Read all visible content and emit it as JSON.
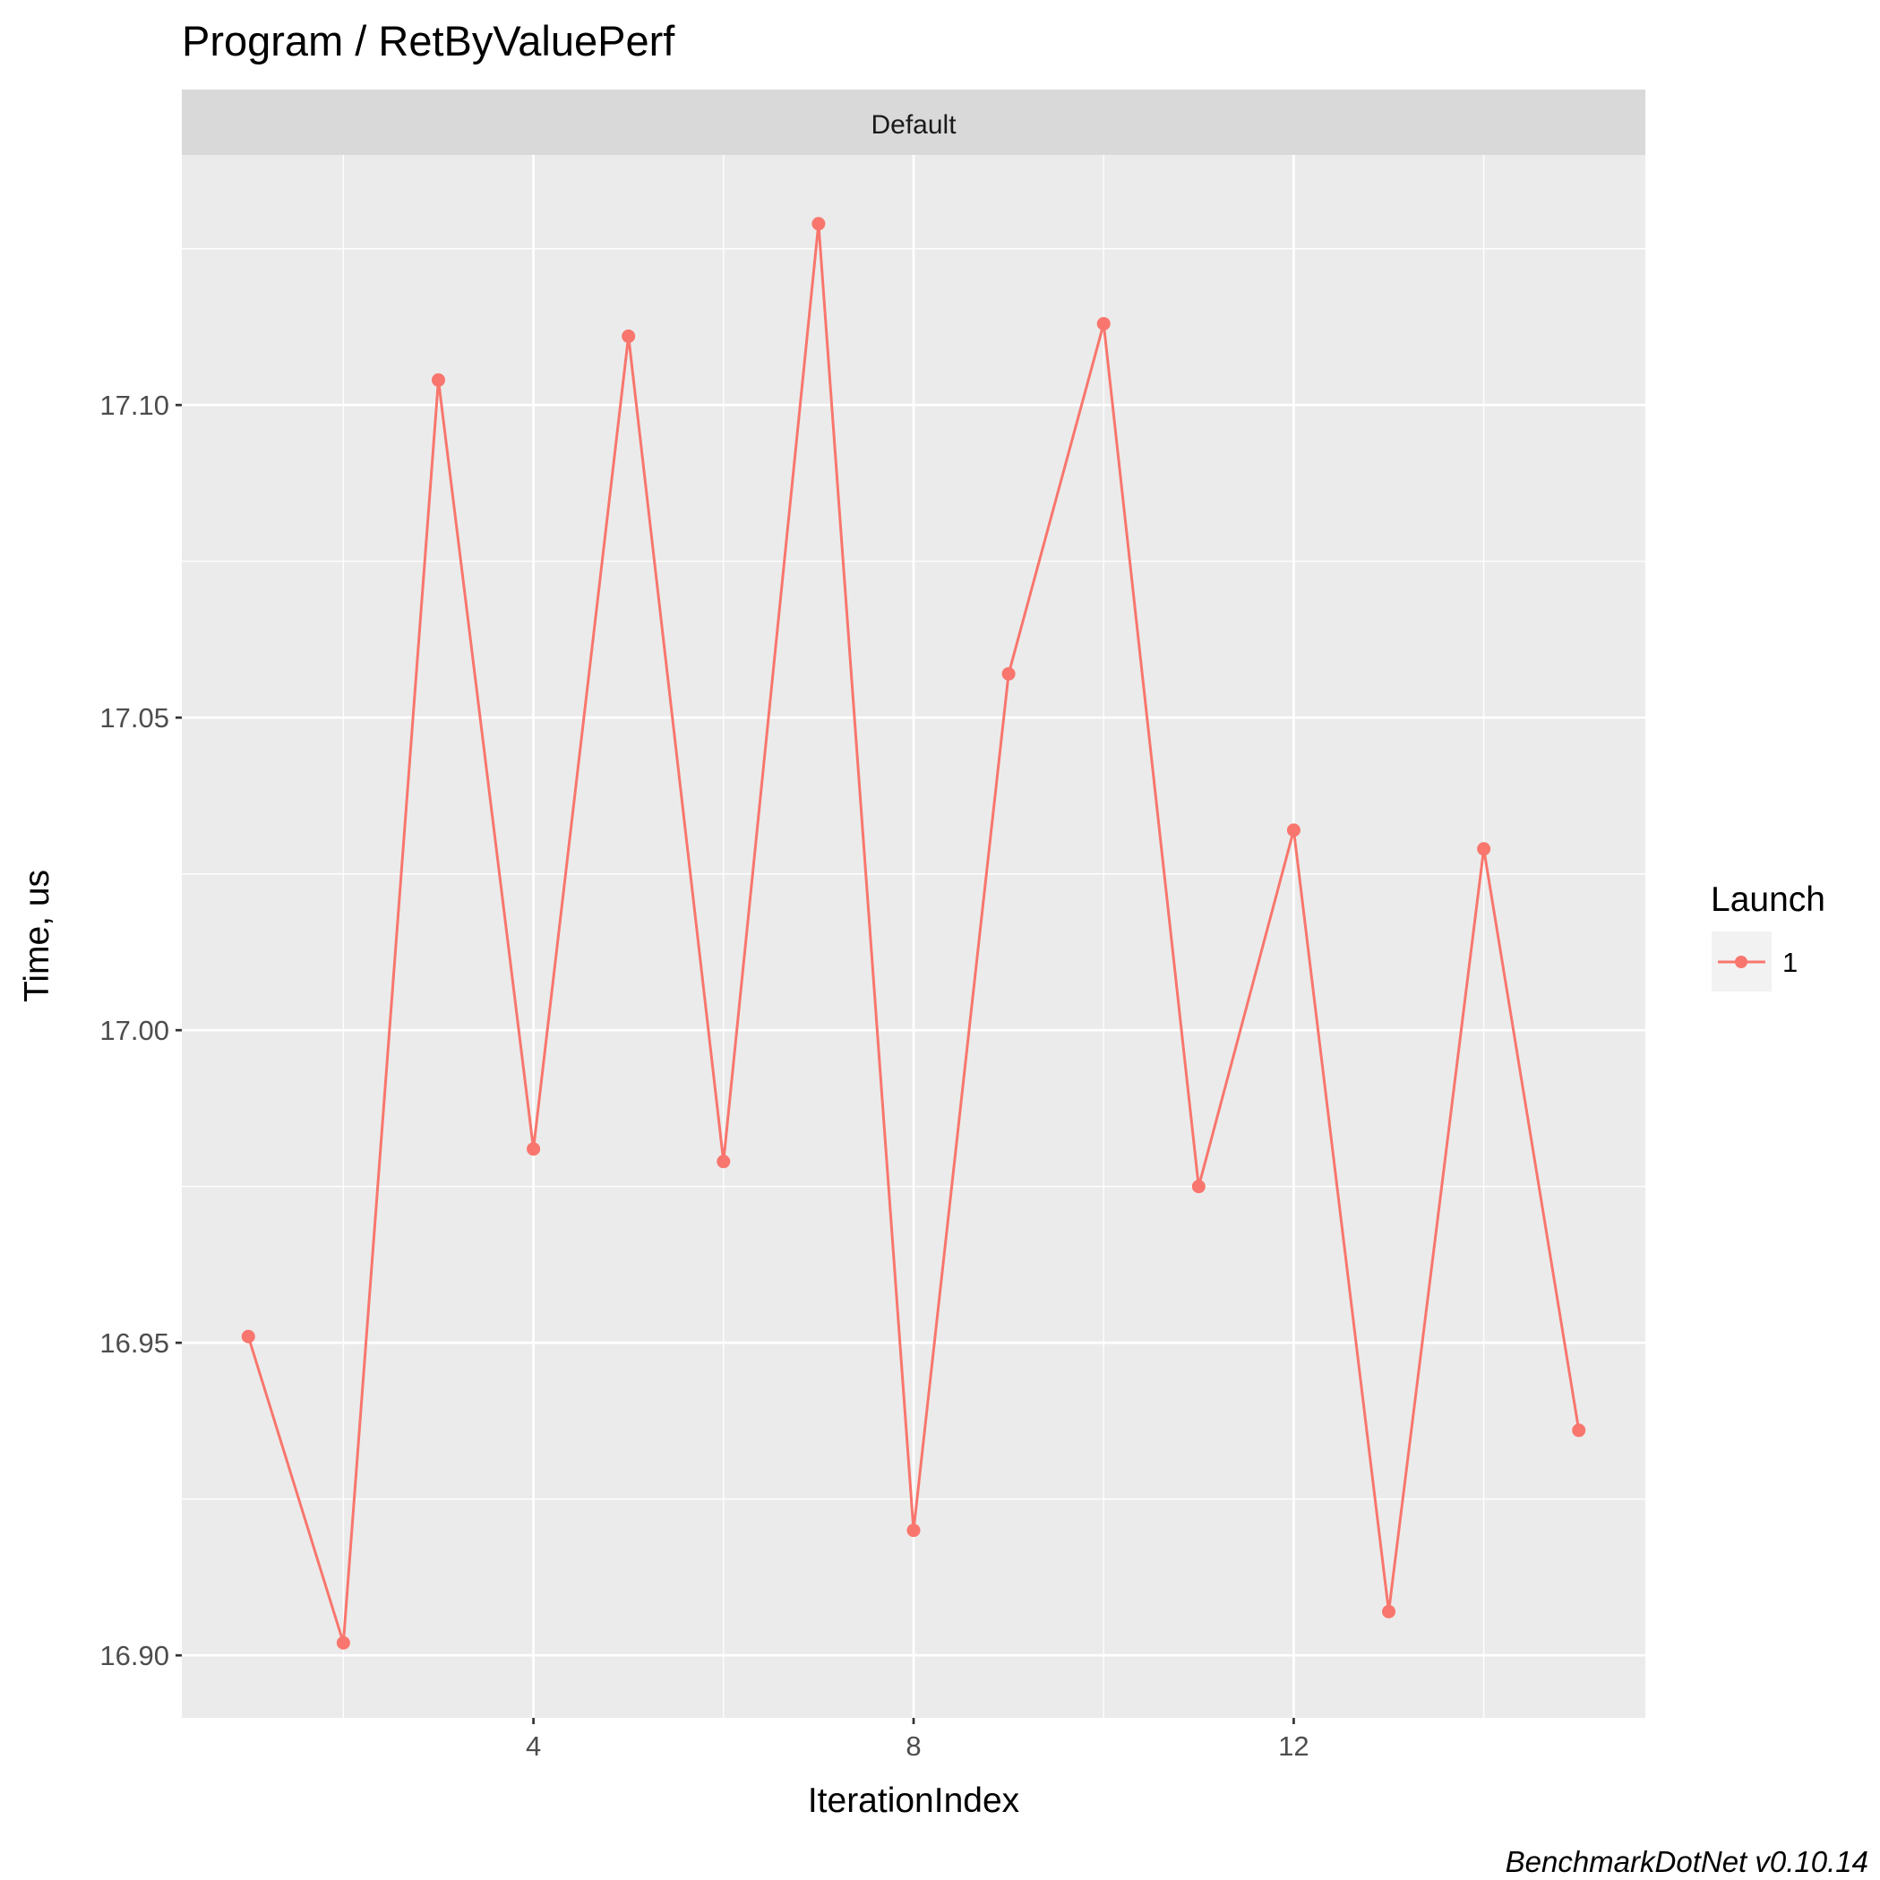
{
  "chart_data": {
    "type": "line",
    "title": "Program / RetByValuePerf",
    "facet_label": "Default",
    "xlabel": "IterationIndex",
    "ylabel": "Time, us",
    "caption": "BenchmarkDotNet v0.10.14",
    "x_ticks": [
      4,
      8,
      12
    ],
    "x_tick_labels": [
      "4",
      "8",
      "12"
    ],
    "y_ticks": [
      16.9,
      16.95,
      17.0,
      17.05,
      17.1
    ],
    "y_tick_labels": [
      "16.90",
      "16.95",
      "17.00",
      "17.05",
      "17.10"
    ],
    "xlim": [
      0.3,
      15.7
    ],
    "ylim": [
      16.89,
      17.14
    ],
    "grid": true,
    "legend": {
      "title": "Launch",
      "position": "right"
    },
    "series": [
      {
        "name": "1",
        "color": "#F8766D",
        "x": [
          1,
          2,
          3,
          4,
          5,
          6,
          7,
          8,
          9,
          10,
          11,
          12,
          13,
          14,
          15
        ],
        "y": [
          16.951,
          16.902,
          17.104,
          16.981,
          17.111,
          16.979,
          17.129,
          16.92,
          17.057,
          17.113,
          16.975,
          17.032,
          16.907,
          17.029,
          16.936
        ]
      }
    ]
  }
}
